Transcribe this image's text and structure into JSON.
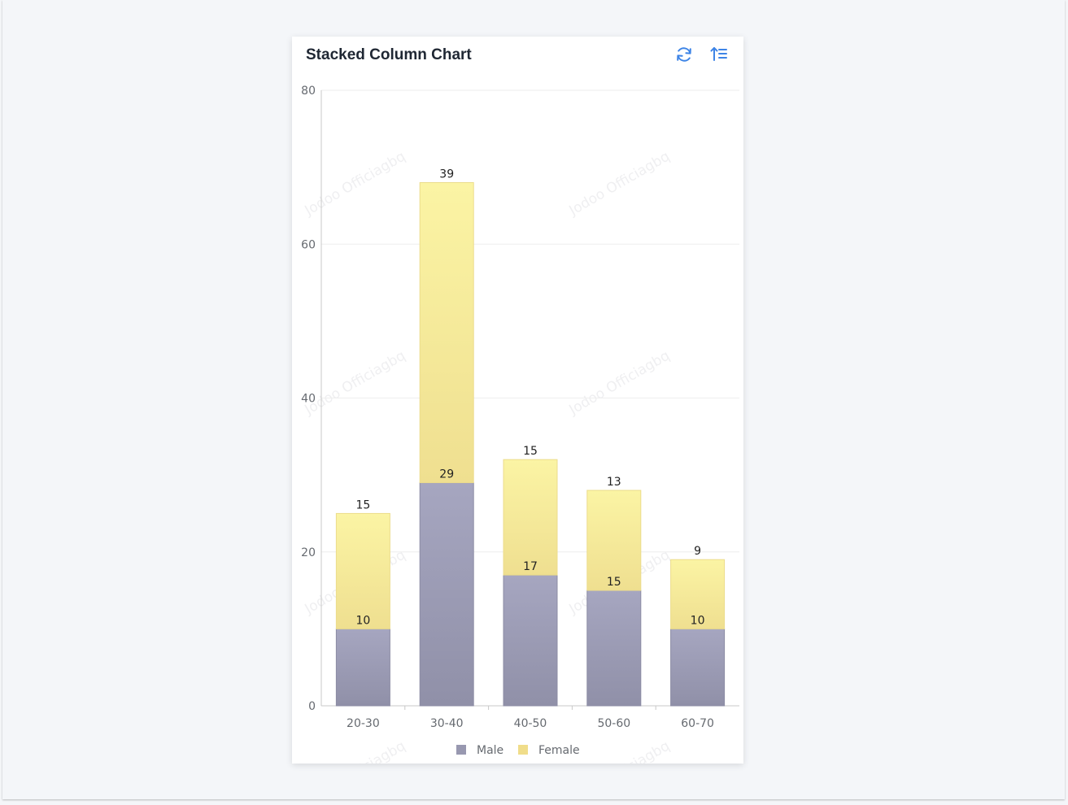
{
  "card": {
    "title": "Stacked Column Chart"
  },
  "icons": {
    "refresh": "refresh-icon",
    "sort": "sort-ascending-icon",
    "accent": "#3d84e6"
  },
  "watermark": "Jodoo Officiagbq",
  "chart_data": {
    "type": "bar",
    "stacked": true,
    "title": "Stacked Column Chart",
    "categories": [
      "20-30",
      "30-40",
      "40-50",
      "50-60",
      "60-70"
    ],
    "series": [
      {
        "name": "Male",
        "values": [
          10,
          29,
          17,
          15,
          10
        ],
        "color": "#9898b0"
      },
      {
        "name": "Female",
        "values": [
          15,
          39,
          15,
          13,
          9
        ],
        "color": "#f5e8a0"
      }
    ],
    "ylim": [
      0,
      80
    ],
    "yticks": [
      0,
      20,
      40,
      60,
      80
    ],
    "grid": true,
    "legend_position": "bottom"
  }
}
